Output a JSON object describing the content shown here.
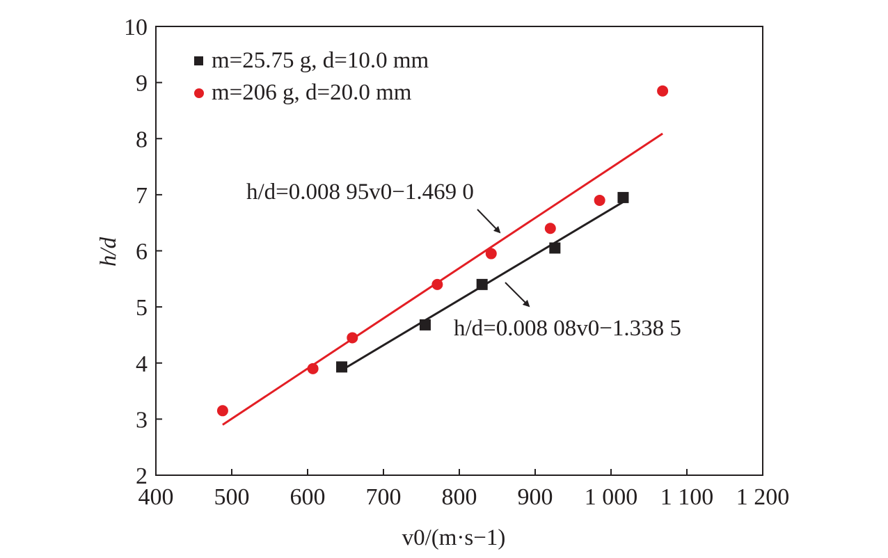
{
  "chart_data": {
    "type": "scatter",
    "xlabel": "v0/(m·s−1)",
    "ylabel": "h/d",
    "xlim": [
      400,
      1200
    ],
    "ylim": [
      2,
      10
    ],
    "xticks": [
      400,
      500,
      600,
      700,
      800,
      900,
      1000,
      1100,
      1200
    ],
    "xtick_labels": [
      "400",
      "500",
      "600",
      "700",
      "800",
      "900",
      "1 000",
      "1 100",
      "1 200"
    ],
    "yticks": [
      2,
      3,
      4,
      5,
      6,
      7,
      8,
      9,
      10
    ],
    "ytick_labels": [
      "2",
      "3",
      "4",
      "5",
      "6",
      "7",
      "8",
      "9",
      "10"
    ],
    "grid": false,
    "legend_position": "top-left",
    "series": [
      {
        "name": "m=25.75 g, d=10.0 mm",
        "marker": "square",
        "color": "#231f20",
        "x": [
          645,
          755,
          830,
          926,
          1016
        ],
        "y": [
          3.93,
          4.68,
          5.4,
          6.05,
          6.95
        ],
        "fit": {
          "label": "h/d=0.008 08v0−1.338 5",
          "slope": 0.00808,
          "intercept": -1.3385,
          "x_range": [
            645,
            1016
          ]
        }
      },
      {
        "name": "m=206 g, d=20.0 mm",
        "marker": "circle",
        "color": "#e31e24",
        "x": [
          488,
          607,
          659,
          771,
          842,
          920,
          985,
          1068
        ],
        "y": [
          3.15,
          3.9,
          4.45,
          5.4,
          5.95,
          6.4,
          6.9,
          8.85
        ],
        "fit": {
          "label": "h/d=0.008 95v0−1.469 0",
          "slope": 0.00895,
          "intercept": -1.469,
          "x_range": [
            488,
            1068
          ]
        }
      }
    ]
  }
}
